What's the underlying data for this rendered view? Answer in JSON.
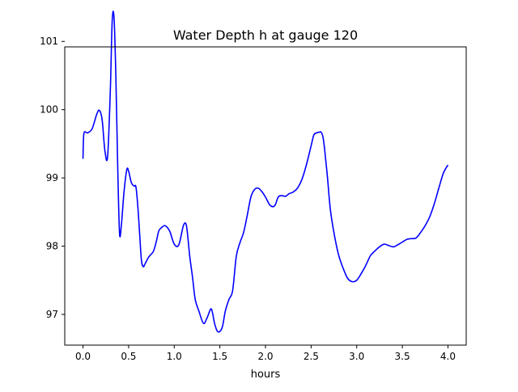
{
  "chart_data": {
    "type": "line",
    "title": "Water Depth h at gauge 120",
    "xlabel": "hours",
    "ylabel": "",
    "xlim": [
      -0.2,
      4.2
    ],
    "ylim": [
      96.55,
      100.92
    ],
    "xticks": [
      0.0,
      0.5,
      1.0,
      1.5,
      2.0,
      2.5,
      3.0,
      3.5,
      4.0
    ],
    "xtick_labels": [
      "0.0",
      "0.5",
      "1.0",
      "1.5",
      "2.0",
      "2.5",
      "3.0",
      "3.5",
      "4.0"
    ],
    "yticks": [
      97,
      98,
      99,
      100,
      101
    ],
    "ytick_labels": [
      "97",
      "98",
      "99",
      "100",
      "101"
    ],
    "grid": false,
    "legend": "none",
    "series": [
      {
        "color": "#0000ff",
        "x": [
          0.0,
          0.01,
          0.05,
          0.1,
          0.15,
          0.18,
          0.21,
          0.24,
          0.27,
          0.3,
          0.32,
          0.34,
          0.36,
          0.38,
          0.4,
          0.42,
          0.45,
          0.48,
          0.5,
          0.53,
          0.56,
          0.58,
          0.6,
          0.62,
          0.64,
          0.66,
          0.68,
          0.72,
          0.77,
          0.8,
          0.83,
          0.86,
          0.9,
          0.95,
          1.0,
          1.05,
          1.1,
          1.13,
          1.15,
          1.17,
          1.2,
          1.23,
          1.27,
          1.32,
          1.36,
          1.4,
          1.42,
          1.44,
          1.47,
          1.5,
          1.53,
          1.56,
          1.6,
          1.64,
          1.68,
          1.72,
          1.76,
          1.8,
          1.84,
          1.88,
          1.92,
          1.96,
          2.0,
          2.05,
          2.1,
          2.14,
          2.18,
          2.22,
          2.26,
          2.3,
          2.35,
          2.4,
          2.45,
          2.5,
          2.53,
          2.56,
          2.59,
          2.61,
          2.63,
          2.65,
          2.68,
          2.71,
          2.75,
          2.8,
          2.85,
          2.9,
          2.95,
          3.0,
          3.05,
          3.1,
          3.15,
          3.2,
          3.25,
          3.3,
          3.35,
          3.4,
          3.45,
          3.5,
          3.55,
          3.6,
          3.65,
          3.7,
          3.75,
          3.8,
          3.85,
          3.9,
          3.95,
          4.0
        ],
        "y": [
          99.28,
          99.65,
          99.66,
          99.72,
          99.93,
          99.99,
          99.85,
          99.4,
          99.32,
          100.3,
          101.3,
          101.35,
          100.5,
          99.2,
          98.2,
          98.3,
          98.8,
          99.12,
          99.1,
          98.93,
          98.88,
          98.87,
          98.6,
          98.2,
          97.8,
          97.7,
          97.74,
          97.84,
          97.92,
          98.05,
          98.22,
          98.27,
          98.3,
          98.22,
          98.03,
          98.02,
          98.3,
          98.32,
          98.12,
          97.85,
          97.55,
          97.22,
          97.05,
          96.87,
          96.95,
          97.08,
          97.02,
          96.88,
          96.76,
          96.75,
          96.83,
          97.05,
          97.22,
          97.35,
          97.85,
          98.05,
          98.2,
          98.45,
          98.72,
          98.83,
          98.85,
          98.8,
          98.72,
          98.6,
          98.59,
          98.72,
          98.74,
          98.73,
          98.77,
          98.79,
          98.85,
          98.98,
          99.2,
          99.47,
          99.63,
          99.66,
          99.67,
          99.67,
          99.6,
          99.4,
          99.0,
          98.55,
          98.2,
          97.88,
          97.68,
          97.53,
          97.48,
          97.5,
          97.6,
          97.72,
          97.86,
          97.93,
          97.99,
          98.03,
          98.01,
          97.99,
          98.02,
          98.06,
          98.1,
          98.11,
          98.12,
          98.2,
          98.3,
          98.43,
          98.62,
          98.85,
          99.07,
          99.19
        ]
      }
    ]
  }
}
